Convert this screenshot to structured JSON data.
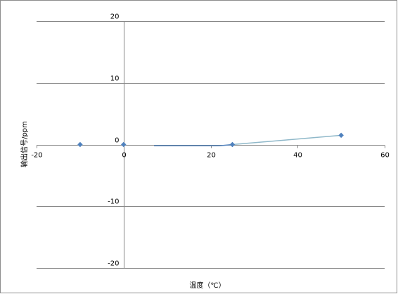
{
  "chart_data": {
    "type": "scatter",
    "title": "",
    "xlabel": "温度（℃）",
    "ylabel": "输出信号/ppm",
    "xlim": [
      -20,
      60
    ],
    "ylim": [
      -20,
      20
    ],
    "x_ticks": [
      "-20",
      "0",
      "20",
      "40",
      "60"
    ],
    "y_ticks": [
      "20",
      "10",
      "0",
      "-10",
      "-20"
    ],
    "grid": "horizontal",
    "legend": "none",
    "series": [
      {
        "points": [
          {
            "x": -10,
            "y": 0
          },
          {
            "x": 0,
            "y": 0
          },
          {
            "x": 25,
            "y": 0
          },
          {
            "x": 50,
            "y": 1.5
          }
        ],
        "marker_color": "#4f81bd"
      }
    ],
    "lines": [
      {
        "points": [
          {
            "x": 7,
            "y": -0.2
          },
          {
            "x": 22,
            "y": -0.2
          },
          {
            "x": 25,
            "y": 0
          },
          {
            "x": 50,
            "y": 1.5
          }
        ],
        "colors": [
          "#4f81bd",
          "#8fb8c9"
        ]
      }
    ]
  }
}
